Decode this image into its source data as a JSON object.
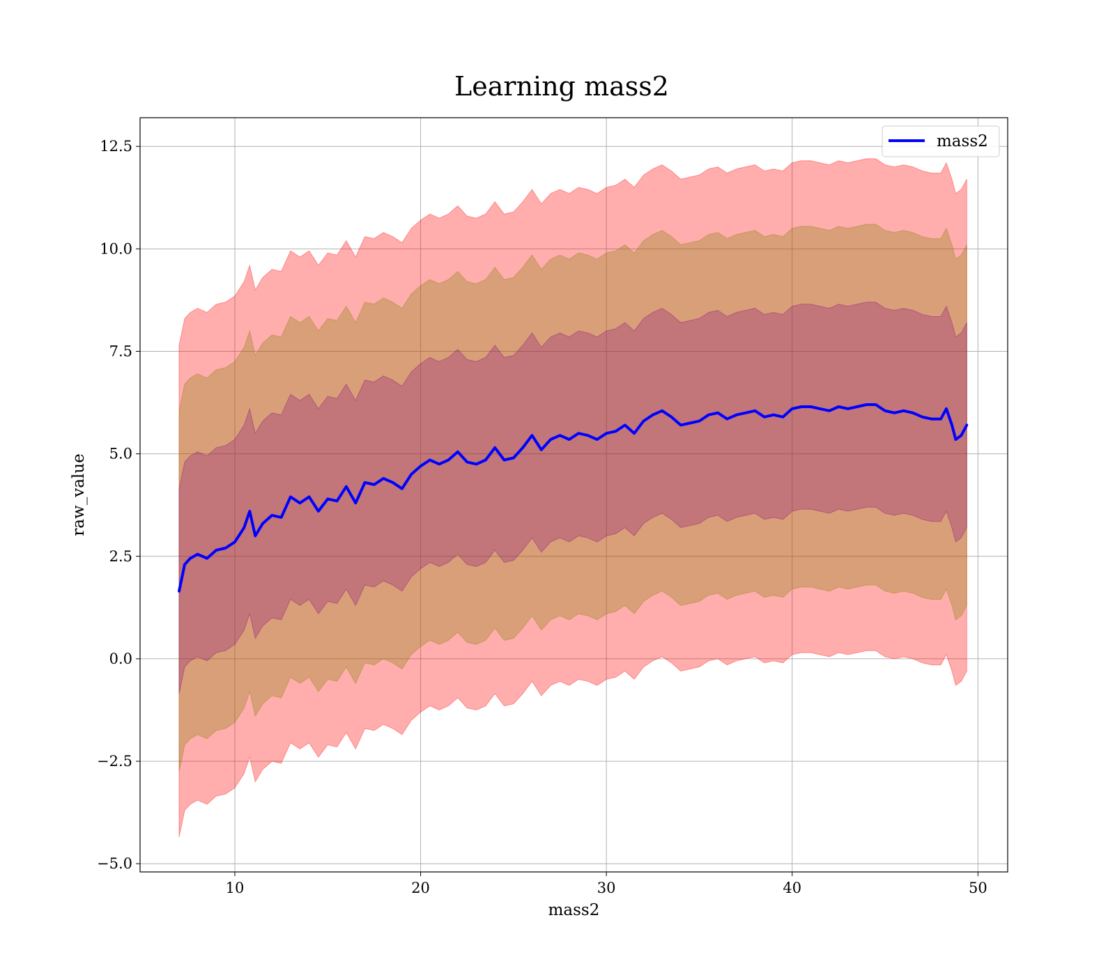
{
  "chart_data": {
    "type": "line",
    "title": "Learning mass2",
    "xlabel": "mass2",
    "ylabel": "raw_value",
    "xlim": [
      4.9,
      51.6
    ],
    "ylim": [
      -5.2,
      13.2
    ],
    "xticks": [
      10,
      20,
      30,
      40,
      50
    ],
    "yticks": [
      -5.0,
      -2.5,
      0.0,
      2.5,
      5.0,
      7.5,
      10.0,
      12.5
    ],
    "xtick_labels": [
      "10",
      "20",
      "30",
      "40",
      "50"
    ],
    "ytick_labels": [
      "−5.0",
      "−2.5",
      "0.0",
      "2.5",
      "5.0",
      "7.5",
      "10.0",
      "12.5"
    ],
    "grid": true,
    "legend_position": "top-right",
    "x": [
      7.0,
      7.3,
      7.6,
      8.0,
      8.5,
      9.0,
      9.5,
      10.0,
      10.5,
      10.8,
      11.1,
      11.5,
      12.0,
      12.5,
      13.0,
      13.5,
      14.0,
      14.5,
      15.0,
      15.5,
      16.0,
      16.5,
      17.0,
      17.5,
      18.0,
      18.5,
      19.0,
      19.5,
      20.0,
      20.5,
      21.0,
      21.5,
      22.0,
      22.5,
      23.0,
      23.5,
      24.0,
      24.5,
      25.0,
      25.5,
      26.0,
      26.5,
      27.0,
      27.5,
      28.0,
      28.5,
      29.0,
      29.5,
      30.0,
      30.5,
      31.0,
      31.5,
      32.0,
      32.5,
      33.0,
      33.5,
      34.0,
      34.5,
      35.0,
      35.5,
      36.0,
      36.5,
      37.0,
      37.5,
      38.0,
      38.5,
      39.0,
      39.5,
      40.0,
      40.5,
      41.0,
      41.5,
      42.0,
      42.5,
      43.0,
      43.5,
      44.0,
      44.5,
      45.0,
      45.5,
      46.0,
      46.5,
      47.0,
      47.5,
      48.0,
      48.3,
      48.6,
      48.8,
      49.1,
      49.4
    ],
    "series": [
      {
        "name": "mass2",
        "color": "#0000ff",
        "values": [
          1.65,
          2.3,
          2.45,
          2.55,
          2.45,
          2.65,
          2.7,
          2.85,
          3.2,
          3.6,
          3.0,
          3.3,
          3.5,
          3.45,
          3.95,
          3.8,
          3.95,
          3.6,
          3.9,
          3.85,
          4.2,
          3.8,
          4.3,
          4.25,
          4.4,
          4.3,
          4.15,
          4.5,
          4.7,
          4.85,
          4.75,
          4.85,
          5.05,
          4.8,
          4.75,
          4.85,
          5.15,
          4.85,
          4.9,
          5.15,
          5.45,
          5.1,
          5.35,
          5.45,
          5.35,
          5.5,
          5.45,
          5.35,
          5.5,
          5.55,
          5.7,
          5.5,
          5.8,
          5.95,
          6.05,
          5.9,
          5.7,
          5.75,
          5.8,
          5.95,
          6.0,
          5.85,
          5.95,
          6.0,
          6.05,
          5.9,
          5.95,
          5.9,
          6.1,
          6.15,
          6.15,
          6.1,
          6.05,
          6.15,
          6.1,
          6.15,
          6.2,
          6.2,
          6.05,
          6.0,
          6.05,
          6.0,
          5.9,
          5.85,
          5.85,
          6.1,
          5.7,
          5.35,
          5.45,
          5.7
        ]
      }
    ],
    "bands": [
      {
        "color": "#ff0000",
        "opacity": 0.32,
        "lower_offset": -6.0,
        "upper_offset": 6.0
      },
      {
        "color": "#808000",
        "opacity": 0.3,
        "lower_offset": -4.4,
        "upper_offset": 4.4
      },
      {
        "color": "#800080",
        "opacity": 0.26,
        "lower_offset": -2.5,
        "upper_offset": 2.5
      }
    ]
  }
}
